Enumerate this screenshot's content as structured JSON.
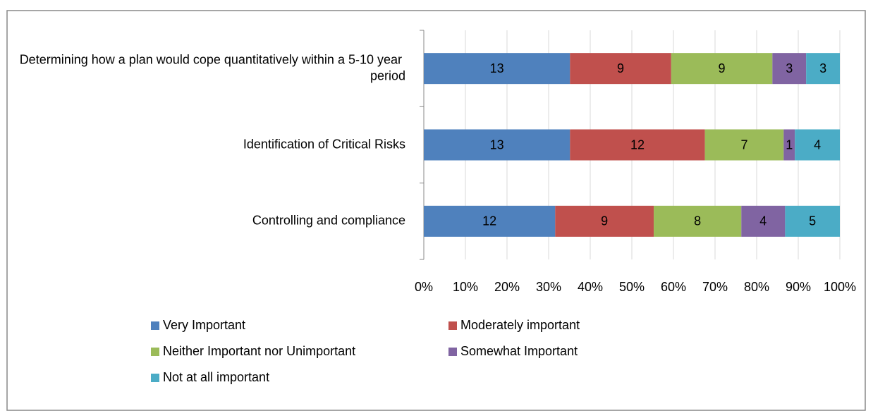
{
  "chart_data": {
    "type": "bar",
    "orientation": "horizontal",
    "stacking": "percent",
    "categories": [
      "Determining how a plan would cope quantitatively within a 5-10 year period",
      "Identification of Critical Risks",
      "Controlling and compliance"
    ],
    "series": [
      {
        "name": "Very Important",
        "color": "#4f81bd",
        "values": [
          13,
          13,
          12
        ]
      },
      {
        "name": "Moderately important",
        "color": "#c0504d",
        "values": [
          9,
          12,
          9
        ]
      },
      {
        "name": "Neither Important nor Unimportant",
        "color": "#9bbb59",
        "values": [
          9,
          7,
          8
        ]
      },
      {
        "name": "Somewhat Important",
        "color": "#8064a2",
        "values": [
          3,
          1,
          4
        ]
      },
      {
        "name": "Not at all important",
        "color": "#4bacc6",
        "values": [
          3,
          4,
          5
        ]
      }
    ],
    "xlim": [
      0,
      100
    ],
    "xticks": [
      {
        "value": 0,
        "label": "0%"
      },
      {
        "value": 10,
        "label": "10%"
      },
      {
        "value": 20,
        "label": "20%"
      },
      {
        "value": 30,
        "label": "30%"
      },
      {
        "value": 40,
        "label": "40%"
      },
      {
        "value": 50,
        "label": "50%"
      },
      {
        "value": 60,
        "label": "60%"
      },
      {
        "value": 70,
        "label": "70%"
      },
      {
        "value": 80,
        "label": "80%"
      },
      {
        "value": 90,
        "label": "90%"
      },
      {
        "value": 100,
        "label": "100%"
      }
    ],
    "grid": true,
    "legend": "bottom"
  }
}
